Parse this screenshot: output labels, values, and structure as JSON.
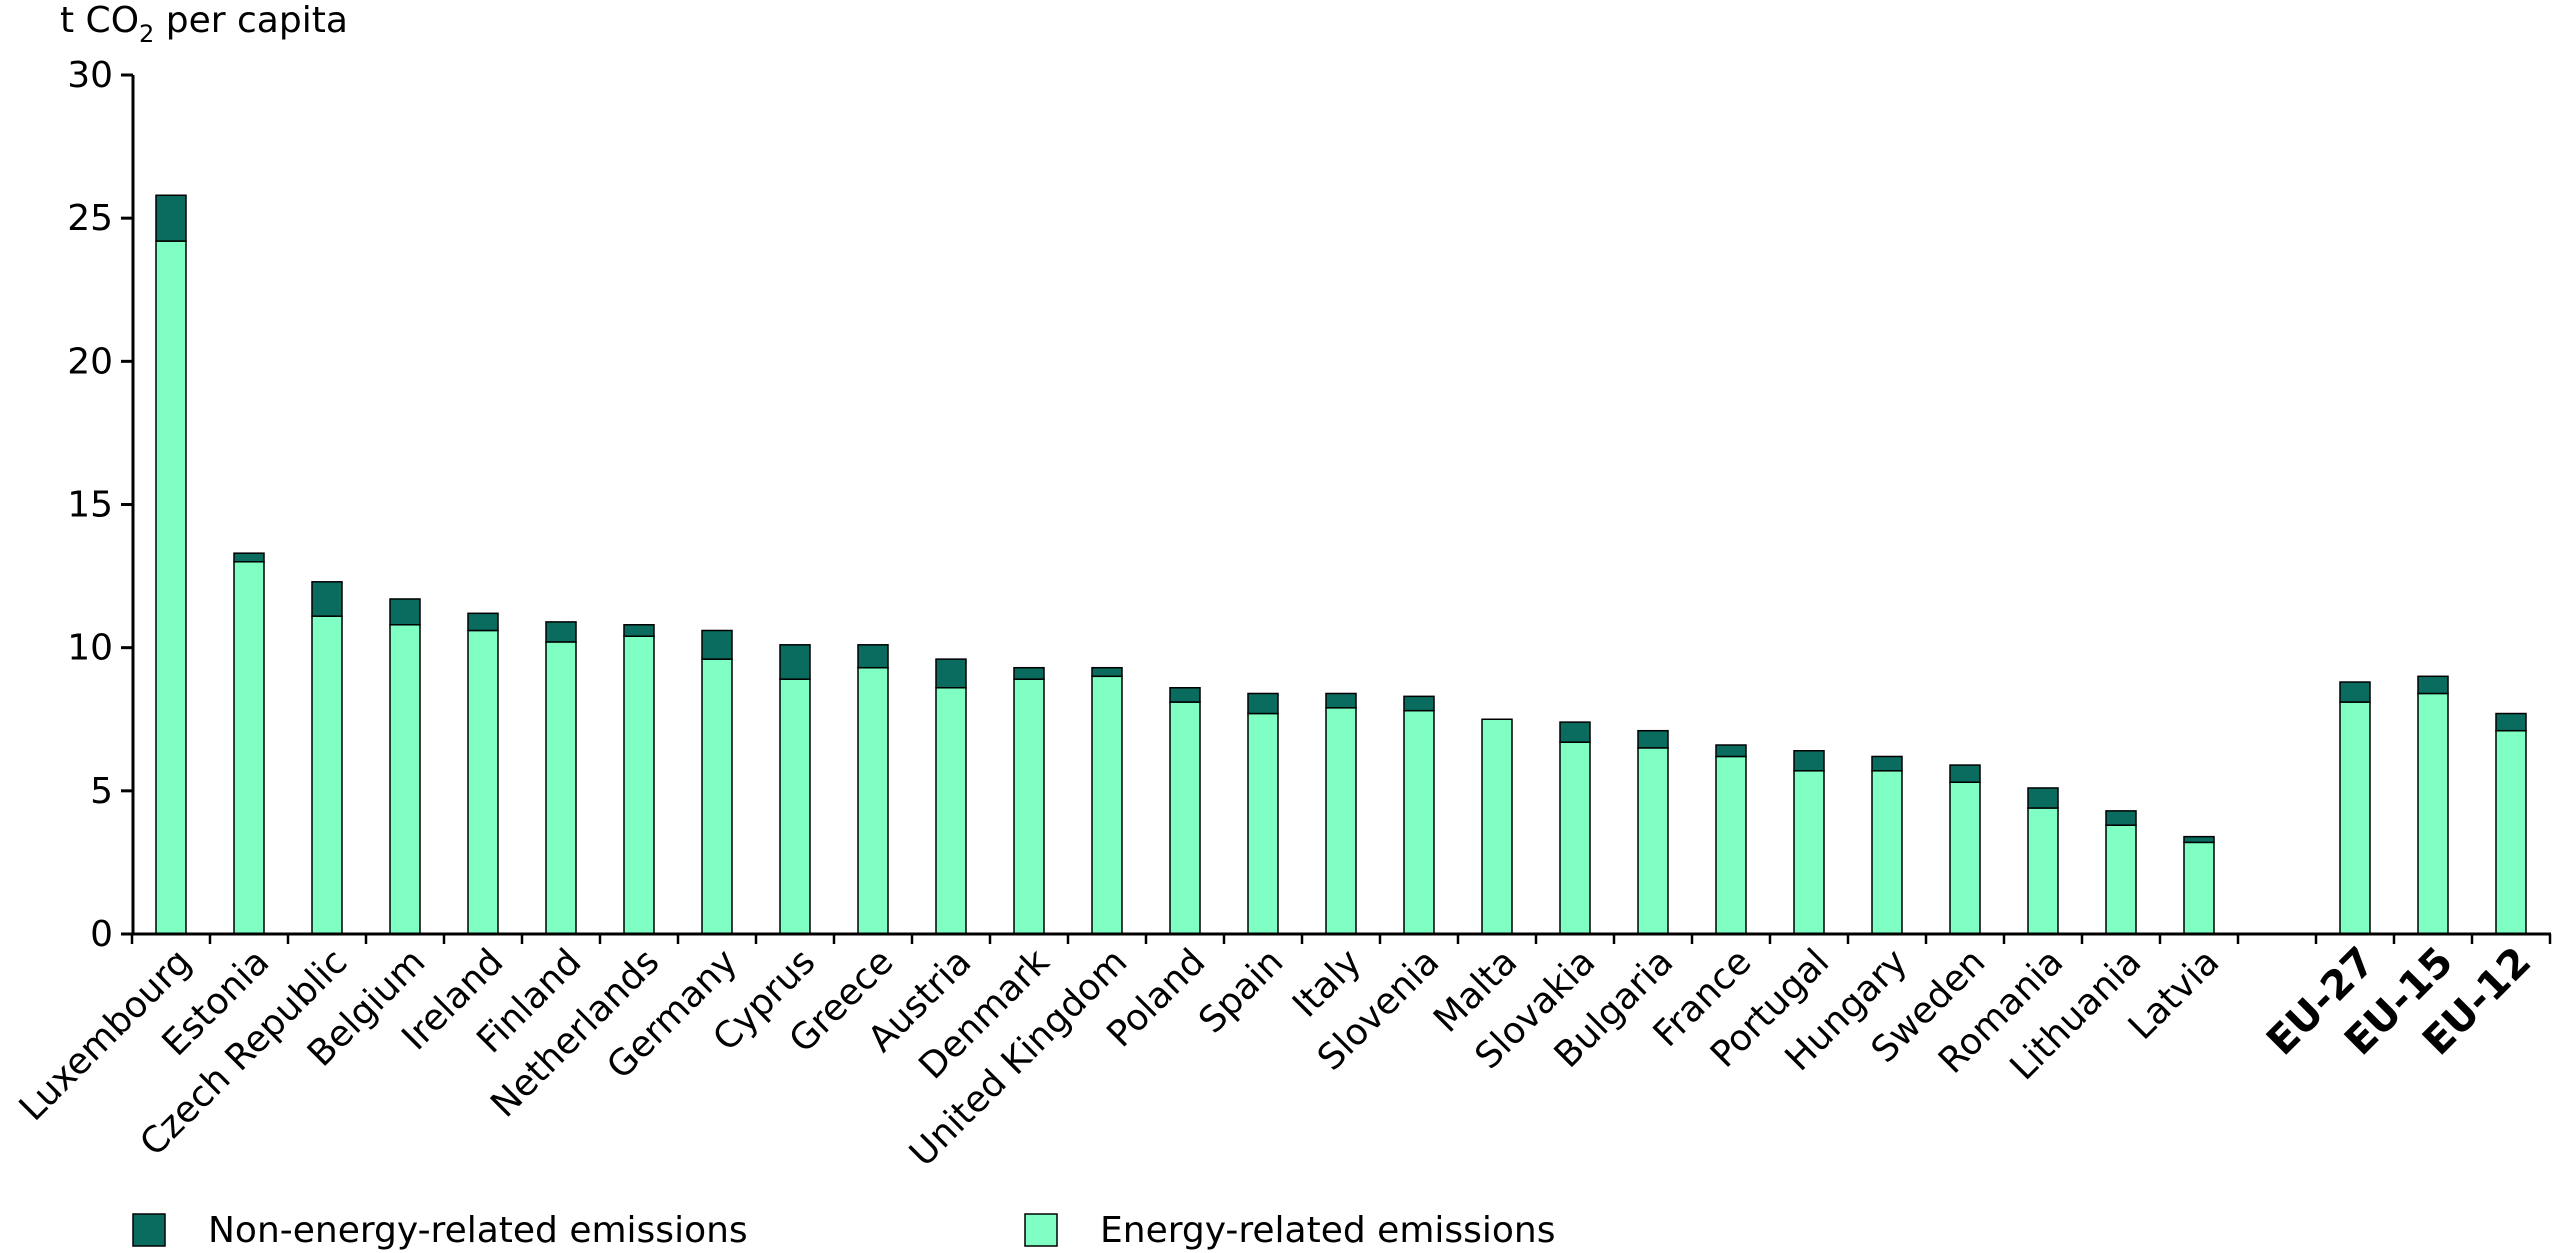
{
  "chart_data": {
    "type": "bar",
    "stacked": true,
    "ylabel_prefix": "t CO",
    "ylabel_subscript": "2",
    "ylabel_suffix": " per capita",
    "ylim": [
      0,
      30
    ],
    "yticks": [
      0,
      5,
      10,
      15,
      20,
      25,
      30
    ],
    "legend_position": "bottom",
    "categories": [
      "Luxembourg",
      "Estonia",
      "Czech Republic",
      "Belgium",
      "Ireland",
      "Finland",
      "Netherlands",
      "Germany",
      "Cyprus",
      "Greece",
      "Austria",
      "Denmark",
      "United Kingdom",
      "Poland",
      "Spain",
      "Italy",
      "Slovenia",
      "Malta",
      "Slovakia",
      "Bulgaria",
      "France",
      "Portugal",
      "Hungary",
      "Sweden",
      "Romania",
      "Lithuania",
      "Latvia",
      "EU-27",
      "EU-15",
      "EU-12"
    ],
    "bold_categories": [
      "EU-27",
      "EU-15",
      "EU-12"
    ],
    "series": [
      {
        "name": "Energy-related emissions",
        "color": "#7fffc4",
        "values": [
          24.2,
          13.0,
          11.1,
          10.8,
          10.6,
          10.2,
          10.4,
          9.6,
          8.9,
          9.3,
          8.6,
          8.9,
          9.0,
          8.1,
          7.7,
          7.9,
          7.8,
          7.5,
          6.7,
          6.5,
          6.2,
          5.7,
          5.7,
          5.3,
          4.4,
          3.8,
          3.2,
          8.1,
          8.4,
          7.1
        ]
      },
      {
        "name": "Non-energy-related emissions",
        "color": "#0a6b5f",
        "values": [
          1.6,
          0.3,
          1.2,
          0.9,
          0.6,
          0.7,
          0.4,
          1.0,
          1.2,
          0.8,
          1.0,
          0.4,
          0.3,
          0.5,
          0.7,
          0.5,
          0.5,
          0.0,
          0.7,
          0.6,
          0.4,
          0.7,
          0.5,
          0.6,
          0.7,
          0.5,
          0.2,
          0.7,
          0.6,
          0.6
        ]
      }
    ]
  },
  "legend": [
    {
      "label": "Non-energy-related emissions",
      "color": "#0a6b5f"
    },
    {
      "label": "Energy-related emissions",
      "color": "#7fffc4"
    }
  ]
}
